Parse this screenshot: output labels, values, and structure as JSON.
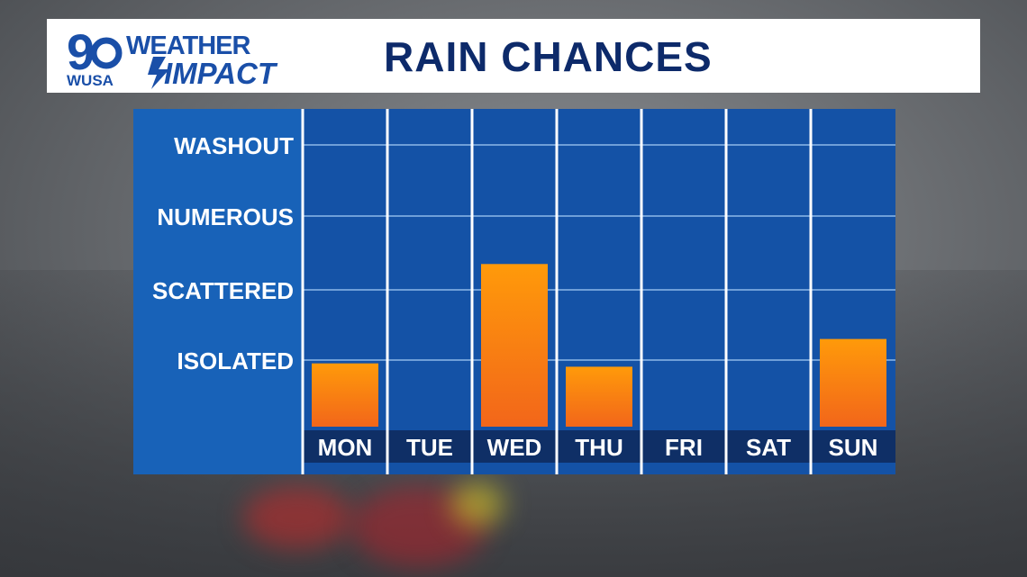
{
  "header": {
    "logo_channel": "9",
    "logo_station": "WUSA",
    "logo_weather": "WEATHER",
    "logo_impact": "IMPACT",
    "title": "RAIN CHANCES"
  },
  "colors": {
    "header_bg": "#ffffff",
    "title": "#0d2a6a",
    "panel": "#1452a6",
    "bar_top": "#ff9a0a",
    "bar_bottom": "#f2661a",
    "day_band": "#0f2f66"
  },
  "chart_data": {
    "type": "bar",
    "title": "RAIN CHANCES",
    "categories": [
      "MON",
      "TUE",
      "WED",
      "THU",
      "FRI",
      "SAT",
      "SUN"
    ],
    "y_levels": [
      "ISOLATED",
      "SCATTERED",
      "NUMEROUS",
      "WASHOUT"
    ],
    "values": [
      0.95,
      0,
      2.35,
      0.9,
      0,
      0,
      1.3
    ],
    "ylim": [
      0,
      4
    ],
    "grid": true,
    "legend": "none"
  }
}
